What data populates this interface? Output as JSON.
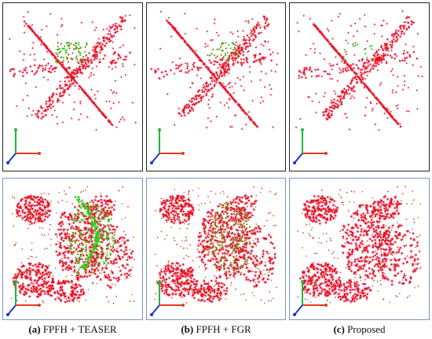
{
  "figure": {
    "captions": [
      {
        "letter": "(a)",
        "text": "FPFH + TEASER"
      },
      {
        "letter": "(b)",
        "text": "FPFH + FGR"
      },
      {
        "letter": "(c)",
        "text": "Proposed"
      }
    ]
  },
  "colors": {
    "source_points": "#e8121a",
    "target_points_green": "#22d418",
    "target_points_olive": "#8a7a1a",
    "halo": "#f7d2e6",
    "axis_x": "#e03b1c",
    "axis_y": "#1fb83a",
    "axis_z": "#1c35c8",
    "top_border": "#222222",
    "bottom_border": "#7b93c6"
  },
  "panels": [
    {
      "row": "top",
      "method": "a",
      "misalignment": "moderate"
    },
    {
      "row": "top",
      "method": "b",
      "misalignment": "slight"
    },
    {
      "row": "top",
      "method": "c",
      "misalignment": "none"
    },
    {
      "row": "bottom",
      "method": "a",
      "misalignment": "large"
    },
    {
      "row": "bottom",
      "method": "b",
      "misalignment": "slight"
    },
    {
      "row": "bottom",
      "method": "c",
      "misalignment": "none"
    }
  ],
  "icons": [
    "coordinate-axes-icon"
  ]
}
